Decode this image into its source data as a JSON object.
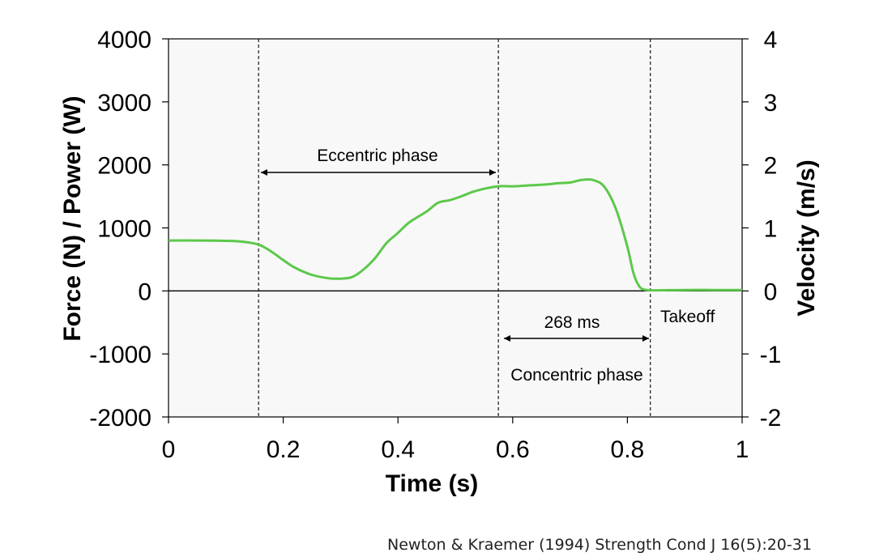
{
  "chart_data": {
    "type": "line",
    "xlabel": "Time (s)",
    "ylabel_left": "Force (N) / Power (W)",
    "ylabel_right": "Velocity (m/s)",
    "xlim": [
      0,
      1
    ],
    "ylim_left": [
      -2000,
      4000
    ],
    "ylim_right": [
      -2,
      4
    ],
    "x_ticks": [
      "0",
      "0.2",
      "0.4",
      "0.6",
      "0.8",
      "1"
    ],
    "y_ticks_left": [
      "-2000",
      "-1000",
      "0",
      "1000",
      "2000",
      "3000",
      "4000"
    ],
    "y_ticks_right": [
      "-2",
      "-1",
      "0",
      "1",
      "2",
      "3",
      "4"
    ],
    "grid": false,
    "line_color": "#5cc84a",
    "series": [
      {
        "x": [
          0,
          0.05,
          0.1,
          0.13,
          0.157,
          0.18,
          0.2,
          0.22,
          0.25,
          0.28,
          0.3,
          0.32,
          0.34,
          0.36,
          0.38,
          0.4,
          0.42,
          0.45,
          0.47,
          0.49,
          0.51,
          0.53,
          0.55,
          0.575,
          0.6,
          0.62,
          0.64,
          0.66,
          0.68,
          0.7,
          0.72,
          0.74,
          0.76,
          0.78,
          0.8,
          0.81,
          0.82,
          0.83,
          0.85,
          0.9,
          0.95,
          1.0
        ],
        "values": [
          800,
          800,
          795,
          780,
          735,
          620,
          490,
          370,
          255,
          200,
          195,
          220,
          340,
          520,
          760,
          920,
          1090,
          1260,
          1400,
          1440,
          1500,
          1570,
          1620,
          1660,
          1660,
          1670,
          1680,
          1690,
          1710,
          1720,
          1760,
          1760,
          1650,
          1300,
          700,
          300,
          80,
          20,
          10,
          15,
          15,
          15
        ]
      }
    ],
    "vlines_x": [
      0.157,
      0.575,
      0.84
    ],
    "annotations": {
      "eccentric": "Eccentric phase",
      "duration": "268 ms",
      "concentric": "Concentric phase",
      "takeoff": "Takeoff"
    }
  },
  "citation": "Newton & Kraemer (1994) Strength Cond J 16(5):20-31"
}
